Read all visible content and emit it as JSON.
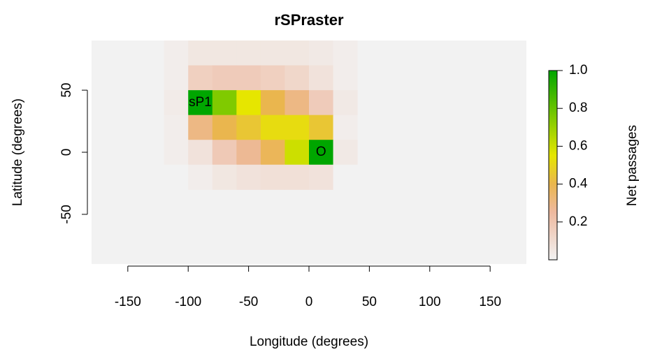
{
  "chart_data": {
    "type": "heatmap",
    "title": "rSPraster",
    "xlabel": "Longitude (degrees)",
    "ylabel": "Latitude (degrees)",
    "colorbar_label": "Net passages",
    "x": [
      -110,
      -90,
      -70,
      -50,
      -30,
      -10,
      10,
      30
    ],
    "y": [
      80,
      60,
      40,
      20,
      0,
      -20
    ],
    "z": [
      [
        0.02,
        0.05,
        0.05,
        0.05,
        0.05,
        0.05,
        0.04,
        0.02
      ],
      [
        0.02,
        0.15,
        0.17,
        0.17,
        0.15,
        0.12,
        0.07,
        0.02
      ],
      [
        0.03,
        1.0,
        0.75,
        0.55,
        0.4,
        0.3,
        0.17,
        0.04
      ],
      [
        0.02,
        0.3,
        0.4,
        0.45,
        0.52,
        0.52,
        0.45,
        0.02
      ],
      [
        0.02,
        0.07,
        0.18,
        0.27,
        0.38,
        0.6,
        1.0,
        0.04
      ],
      [
        0,
        0.02,
        0.05,
        0.07,
        0.08,
        0.08,
        0.07,
        0
      ]
    ],
    "cell_size": 20,
    "background": "#f2f2f2",
    "colorscale": [
      [
        0,
        "#f2f2f2"
      ],
      [
        0.25,
        "#eeb99f"
      ],
      [
        0.4,
        "#eab64e"
      ],
      [
        0.55,
        "#e6e600"
      ],
      [
        1,
        "#00a600"
      ]
    ],
    "annotations": [
      {
        "text": "sP1",
        "x": -90,
        "y": 40
      },
      {
        "text": "O",
        "x": 10,
        "y": 0
      }
    ],
    "xlim": [
      -180,
      180
    ],
    "ylim": [
      -90,
      90
    ],
    "xticks": [
      -150,
      -100,
      -50,
      0,
      50,
      100,
      150
    ],
    "yticks": [
      -50,
      0,
      50
    ],
    "colorbar_lim": [
      0,
      1
    ],
    "colorbar_ticks": [
      0.2,
      0.4,
      0.6,
      0.8,
      {
        "value": 1,
        "label": "1.0"
      }
    ]
  }
}
